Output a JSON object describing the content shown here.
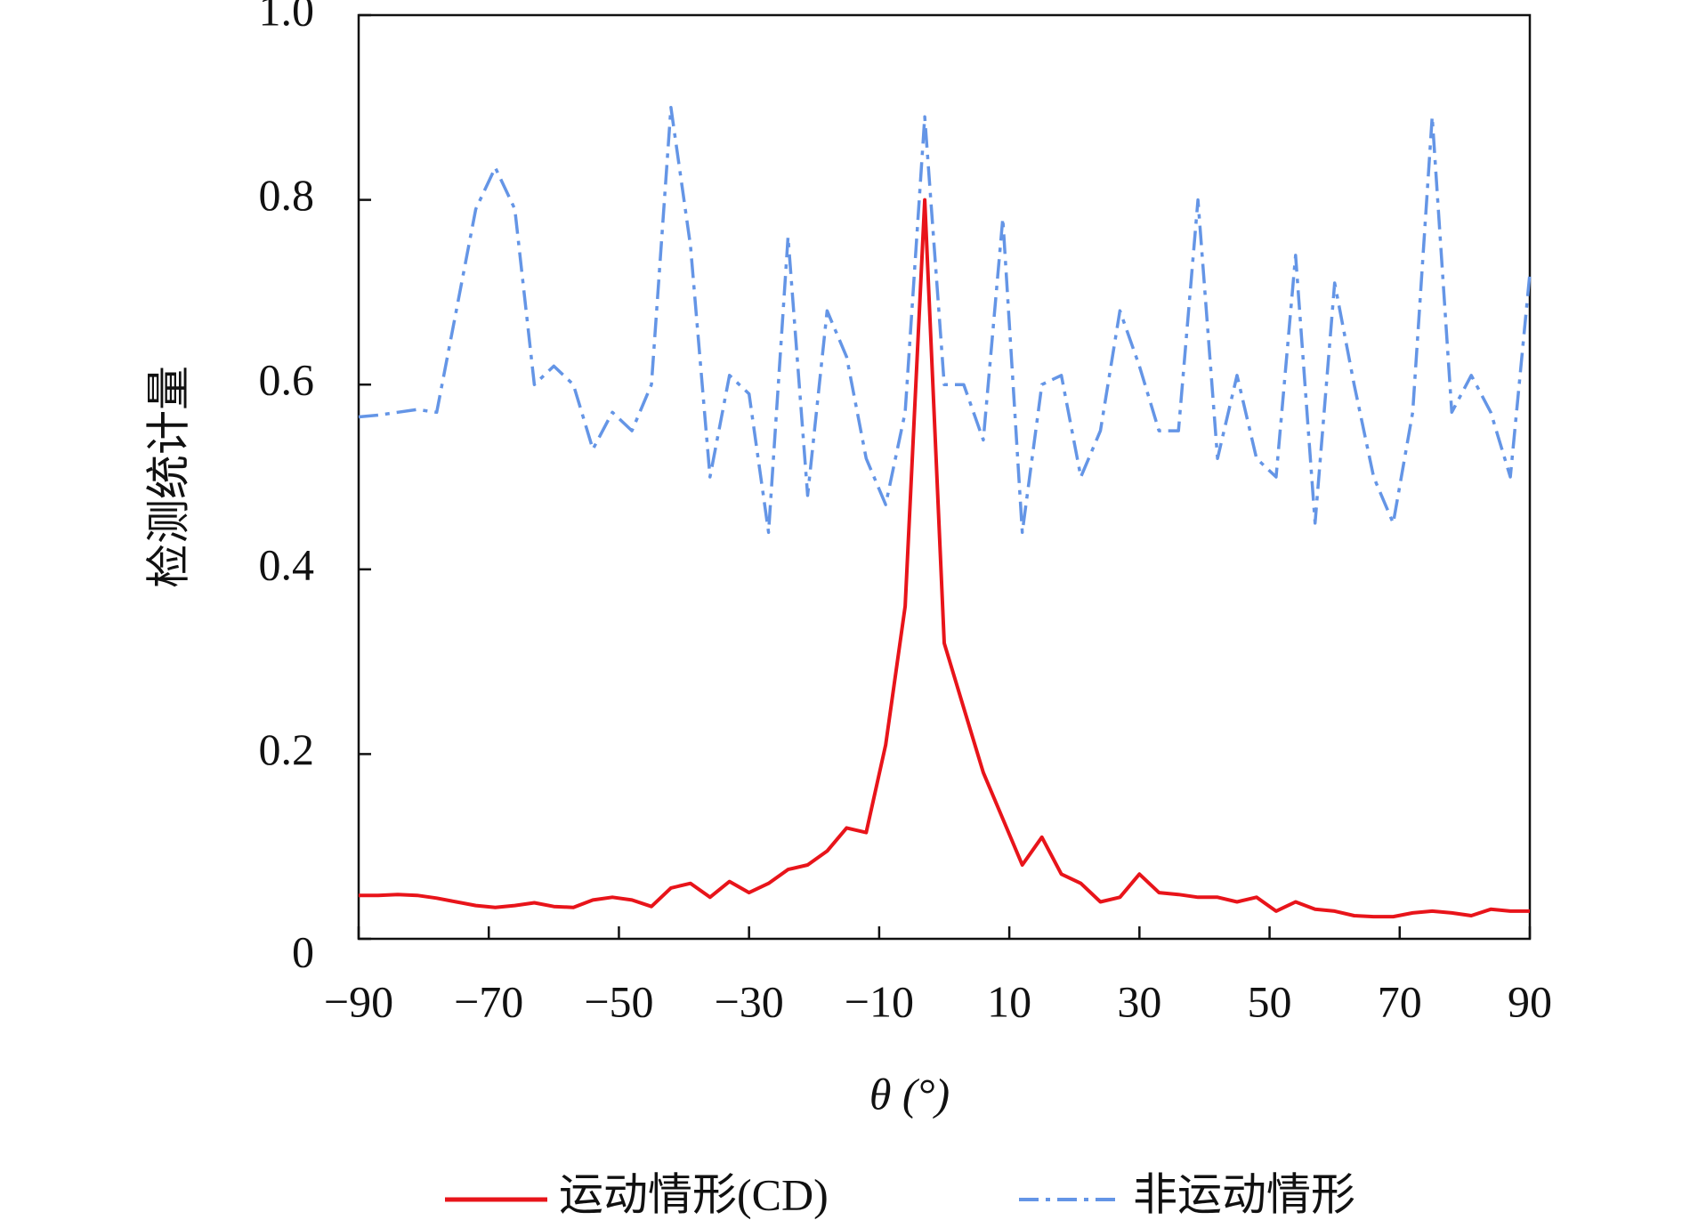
{
  "chart_data": {
    "type": "line",
    "xlabel": "θ (°)",
    "ylabel": "检测统计量",
    "x": [
      -90,
      -87,
      -84,
      -81,
      -78,
      -75,
      -72,
      -69,
      -66,
      -63,
      -60,
      -57,
      -54,
      -51,
      -48,
      -45,
      -42,
      -39,
      -36,
      -33,
      -30,
      -27,
      -24,
      -21,
      -18,
      -15,
      -12,
      -9,
      -6,
      -3,
      0,
      3,
      6,
      9,
      12,
      15,
      18,
      21,
      24,
      27,
      30,
      33,
      36,
      39,
      42,
      45,
      48,
      51,
      54,
      57,
      60,
      63,
      66,
      69,
      72,
      75,
      78,
      81,
      84,
      87,
      90
    ],
    "series": [
      {
        "name": "运动情形(CD)",
        "color": "#e8141a",
        "dash": "solid",
        "values": [
          0.047,
          0.047,
          0.048,
          0.047,
          0.044,
          0.04,
          0.036,
          0.034,
          0.036,
          0.039,
          0.035,
          0.034,
          0.042,
          0.045,
          0.042,
          0.035,
          0.055,
          0.06,
          0.045,
          0.062,
          0.05,
          0.06,
          0.075,
          0.08,
          0.095,
          0.12,
          0.115,
          0.21,
          0.36,
          0.8,
          0.32,
          0.25,
          0.18,
          0.13,
          0.08,
          0.11,
          0.07,
          0.06,
          0.04,
          0.045,
          0.07,
          0.05,
          0.048,
          0.045,
          0.045,
          0.04,
          0.045,
          0.03,
          0.04,
          0.032,
          0.03,
          0.025,
          0.024,
          0.024,
          0.028,
          0.03,
          0.028,
          0.025,
          0.032,
          0.03,
          0.03
        ]
      },
      {
        "name": "非运动情形",
        "color": "#6495e6",
        "dash": "dashdot",
        "values": [
          0.565,
          0.567,
          0.57,
          0.573,
          0.57,
          0.68,
          0.79,
          0.835,
          0.79,
          0.6,
          0.62,
          0.6,
          0.53,
          0.57,
          0.55,
          0.6,
          0.9,
          0.75,
          0.5,
          0.61,
          0.59,
          0.44,
          0.76,
          0.48,
          0.68,
          0.63,
          0.52,
          0.47,
          0.57,
          0.89,
          0.6,
          0.6,
          0.54,
          0.78,
          0.44,
          0.6,
          0.61,
          0.5,
          0.55,
          0.68,
          0.62,
          0.55,
          0.55,
          0.8,
          0.52,
          0.61,
          0.52,
          0.5,
          0.74,
          0.45,
          0.71,
          0.6,
          0.5,
          0.45,
          0.57,
          0.89,
          0.57,
          0.61,
          0.57,
          0.5,
          0.72
        ]
      }
    ],
    "xlim": [
      -90,
      90
    ],
    "xticks": [
      {
        "value": -90,
        "label": "−90"
      },
      {
        "value": -70,
        "label": "−70"
      },
      {
        "value": -50,
        "label": "−50"
      },
      {
        "value": -30,
        "label": "−30"
      },
      {
        "value": -10,
        "label": "−10"
      },
      10,
      30,
      50,
      70,
      90
    ],
    "ylim": [
      0,
      1
    ],
    "yticks": [
      0,
      0.2,
      0.4,
      0.6,
      0.8,
      {
        "value": 1,
        "label": "1.0"
      }
    ],
    "legend": "bottom"
  }
}
